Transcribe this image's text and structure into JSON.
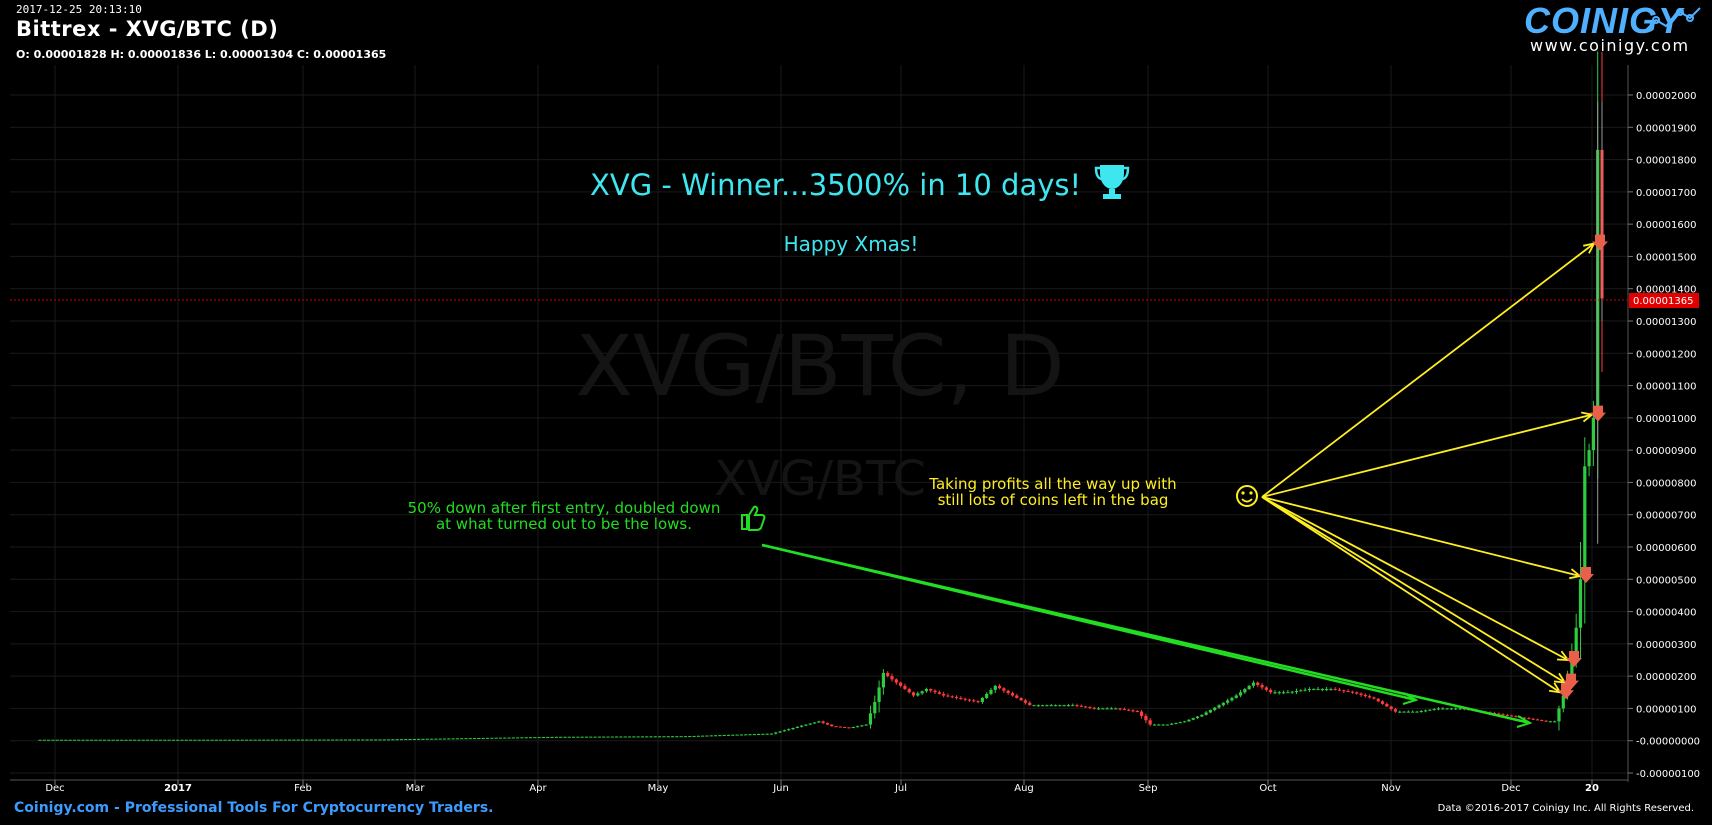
{
  "header": {
    "timestamp": "2017-12-25 20:13:10",
    "title": "Bittrex - XVG/BTC (D)",
    "ohlc": "O: 0.00001828 H: 0.00001836 L: 0.00001304 C: 0.00001365"
  },
  "logo": {
    "name": "COINIGY",
    "url": "www.coinigy.com"
  },
  "footer": {
    "left": "Coinigy.com - Professional Tools For Cryptocurrency Traders.",
    "right": "Data ©2016-2017 Coinigy Inc. All Rights Reserved."
  },
  "watermark": {
    "main": "XVG/BTC, D",
    "sub": "XVG/BTC"
  },
  "annotations": {
    "headline": "XVG - Winner...3500% in 10 days!",
    "headline_icon": "trophy-icon",
    "greeting": "Happy Xmas!",
    "green_note_line1": "50% down after first entry, doubled down",
    "green_note_line2": "at what turned out to be the lows.",
    "green_note_icon": "thumbs-up-icon",
    "yellow_note_line1": "Taking profits all the way up with",
    "yellow_note_line2": "still lots of coins left in the bag",
    "yellow_note_icon": "smiley-icon"
  },
  "colors": {
    "up": "#2ecc40",
    "down": "#ff3b3b",
    "grid": "#1a1a1a",
    "headline": "#3ee6f0",
    "green_note": "#22dd22",
    "yellow_note": "#ffee22",
    "sell_marker": "#e8604a",
    "last_price_bg": "#e00000"
  },
  "chart_data": {
    "type": "candlestick",
    "x_tick_labels": [
      "Dec",
      "2017",
      "Feb",
      "Mar",
      "Apr",
      "May",
      "Jun",
      "Jul",
      "Aug",
      "Sep",
      "Oct",
      "Nov",
      "Dec",
      "20"
    ],
    "y_tick_labels": [
      "0.00002000",
      "0.00001900",
      "0.00001800",
      "0.00001700",
      "0.00001600",
      "0.00001500",
      "0.00001400",
      "0.00001300",
      "0.00001200",
      "0.00001100",
      "0.00001000",
      "0.00000900",
      "0.00000800",
      "0.00000700",
      "0.00000600",
      "0.00000500",
      "0.00000400",
      "0.00000300",
      "0.00000200",
      "0.00000100",
      "-0.00000000",
      "-0.00000100"
    ],
    "ylim": [
      -1e-06,
      2e-05
    ],
    "last_price": "0.00001365",
    "series": [
      {
        "x": 0,
        "v": 3e-08
      },
      {
        "x": 40,
        "v": 3e-08
      },
      {
        "x": 80,
        "v": 4e-08
      },
      {
        "x": 100,
        "v": 8e-08
      },
      {
        "x": 120,
        "v": 1.2e-07
      },
      {
        "x": 150,
        "v": 1.4e-07
      },
      {
        "x": 170,
        "v": 2.2e-07
      },
      {
        "x": 178,
        "v": 5e-07
      },
      {
        "x": 181,
        "v": 6e-07
      },
      {
        "x": 184,
        "v": 4.5e-07
      },
      {
        "x": 188,
        "v": 4e-07
      },
      {
        "x": 192,
        "v": 5e-07
      },
      {
        "x": 194,
        "v": 1.2e-06
      },
      {
        "x": 196,
        "v": 2.1e-06
      },
      {
        "x": 198,
        "v": 1.9e-06
      },
      {
        "x": 200,
        "v": 1.7e-06
      },
      {
        "x": 203,
        "v": 1.4e-06
      },
      {
        "x": 206,
        "v": 1.6e-06
      },
      {
        "x": 210,
        "v": 1.4e-06
      },
      {
        "x": 214,
        "v": 1.3e-06
      },
      {
        "x": 218,
        "v": 1.2e-06
      },
      {
        "x": 222,
        "v": 1.7e-06
      },
      {
        "x": 226,
        "v": 1.4e-06
      },
      {
        "x": 230,
        "v": 1.1e-06
      },
      {
        "x": 235,
        "v": 1.1e-06
      },
      {
        "x": 240,
        "v": 1.1e-06
      },
      {
        "x": 245,
        "v": 1e-06
      },
      {
        "x": 250,
        "v": 1e-06
      },
      {
        "x": 255,
        "v": 9e-07
      },
      {
        "x": 258,
        "v": 5e-07
      },
      {
        "x": 262,
        "v": 5e-07
      },
      {
        "x": 266,
        "v": 6e-07
      },
      {
        "x": 270,
        "v": 8e-07
      },
      {
        "x": 274,
        "v": 1.1e-06
      },
      {
        "x": 278,
        "v": 1.4e-06
      },
      {
        "x": 282,
        "v": 1.8e-06
      },
      {
        "x": 286,
        "v": 1.5e-06
      },
      {
        "x": 290,
        "v": 1.5e-06
      },
      {
        "x": 295,
        "v": 1.6e-06
      },
      {
        "x": 300,
        "v": 1.6e-06
      },
      {
        "x": 305,
        "v": 1.5e-06
      },
      {
        "x": 310,
        "v": 1.3e-06
      },
      {
        "x": 315,
        "v": 9e-07
      },
      {
        "x": 320,
        "v": 9e-07
      },
      {
        "x": 325,
        "v": 1e-06
      },
      {
        "x": 330,
        "v": 1e-06
      },
      {
        "x": 335,
        "v": 9e-07
      },
      {
        "x": 340,
        "v": 8e-07
      },
      {
        "x": 345,
        "v": 7e-07
      },
      {
        "x": 350,
        "v": 6e-07
      },
      {
        "x": 352,
        "v": 6e-07
      },
      {
        "x": 353,
        "v": 1e-06
      },
      {
        "x": 354,
        "v": 1.4e-06
      },
      {
        "x": 355,
        "v": 2e-06
      },
      {
        "x": 356,
        "v": 2.6e-06
      },
      {
        "x": 357,
        "v": 3.5e-06
      },
      {
        "x": 358,
        "v": 5e-06
      },
      {
        "x": 359,
        "v": 8.5e-06
      },
      {
        "x": 360,
        "v": 9e-06
      },
      {
        "x": 361,
        "v": 1e-05
      },
      {
        "x": 362,
        "v": 1.83e-05
      },
      {
        "x": 363,
        "v": 1.37e-05
      }
    ],
    "sell_markers": [
      1.5e-06,
      1.8e-06,
      2.5e-06,
      5.1e-06,
      1.01e-05,
      1.54e-05
    ]
  }
}
